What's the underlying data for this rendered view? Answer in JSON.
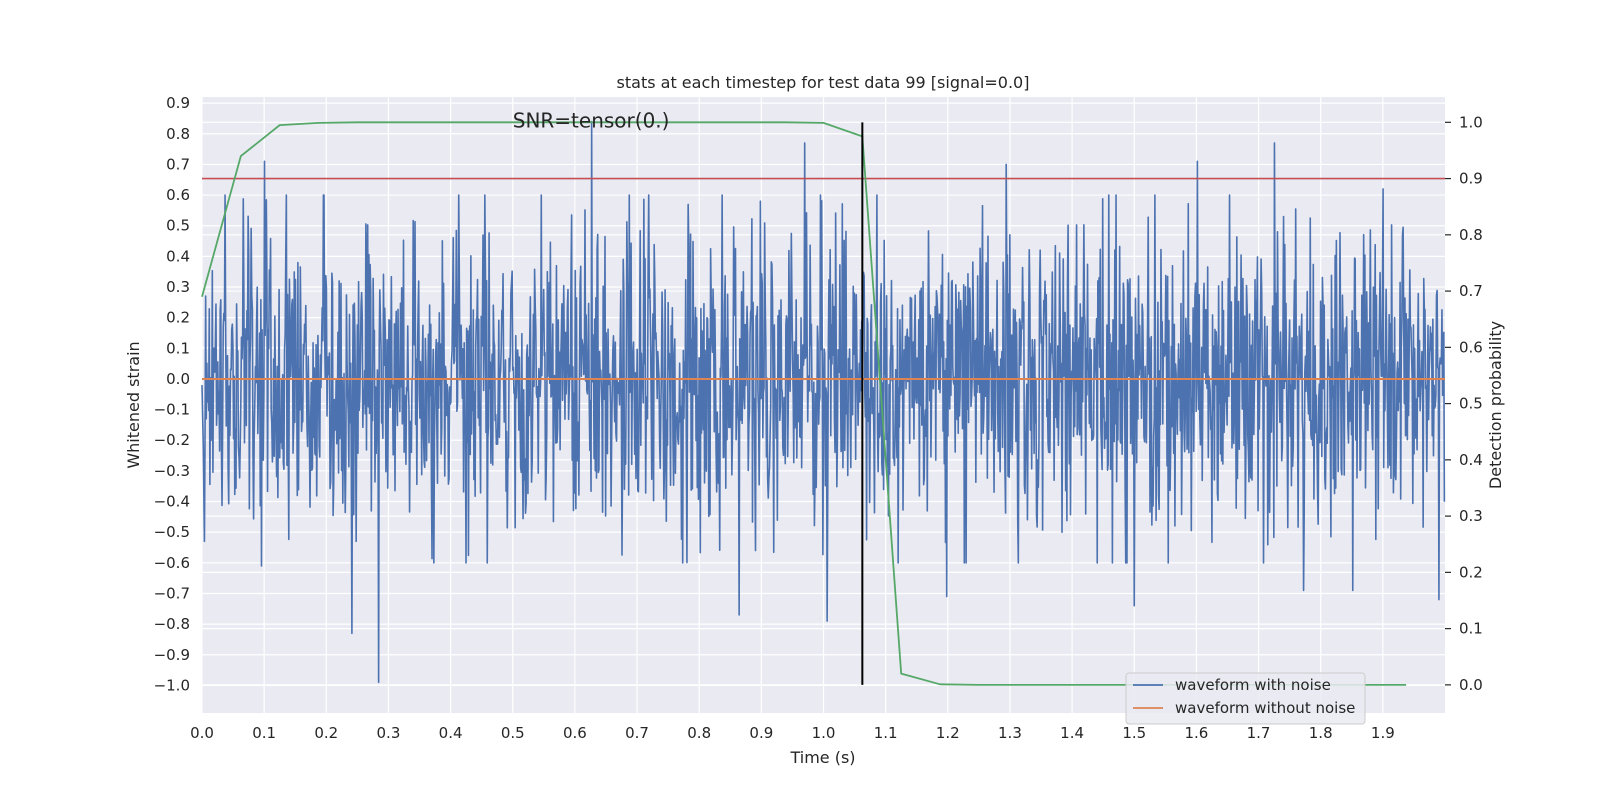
{
  "chart_data": {
    "type": "line",
    "title": "stats at each timestep for test data 99 [signal=0.0]",
    "xlabel": "Time (s)",
    "ylabel": "Whitened strain",
    "ylabel_right": "Detection probability",
    "xlim": [
      0.0,
      2.0
    ],
    "ylim": [
      -1.09,
      0.92
    ],
    "ylim_right": [
      -0.05,
      1.045
    ],
    "x_ticks": [
      0.0,
      0.1,
      0.2,
      0.3,
      0.4,
      0.5,
      0.6,
      0.7,
      0.8,
      0.9,
      1.0,
      1.1,
      1.2,
      1.3,
      1.4,
      1.5,
      1.6,
      1.7,
      1.8,
      1.9
    ],
    "x_tick_labels": [
      "0.0",
      "0.1",
      "0.2",
      "0.3",
      "0.4",
      "0.5",
      "0.6",
      "0.7",
      "0.8",
      "0.9",
      "1.0",
      "1.1",
      "1.2",
      "1.3",
      "1.4",
      "1.5",
      "1.6",
      "1.7",
      "1.8",
      "1.9"
    ],
    "y_ticks": [
      0.9,
      0.8,
      0.7,
      0.6,
      0.5,
      0.4,
      0.3,
      0.2,
      0.1,
      0.0,
      -0.1,
      -0.2,
      -0.3,
      -0.4,
      -0.5,
      -0.6,
      -0.7,
      -0.8,
      -0.9,
      -1.0
    ],
    "y_tick_labels": [
      "0.9",
      "0.8",
      "0.7",
      "0.6",
      "0.5",
      "0.4",
      "0.3",
      "0.2",
      "0.1",
      "0.0",
      "−0.1",
      "−0.2",
      "−0.3",
      "−0.4",
      "−0.5",
      "−0.6",
      "−0.7",
      "−0.8",
      "−0.9",
      "−1.0"
    ],
    "y_right_ticks": [
      1.0,
      0.9,
      0.8,
      0.7,
      0.6,
      0.5,
      0.4,
      0.3,
      0.2,
      0.1,
      0.0
    ],
    "y_right_tick_labels": [
      "1.0",
      "0.9",
      "0.8",
      "0.7",
      "0.6",
      "0.5",
      "0.4",
      "0.3",
      "0.2",
      "0.1",
      "0.0"
    ],
    "annotation": "SNR=tensor(0.)",
    "annotation_x": 0.5,
    "annotation_y": 0.82,
    "noise_series": {
      "name": "waveform with noise",
      "color": "#4c72b0",
      "x_start": 0.0,
      "x_end": 2.0,
      "samples": 2048,
      "seed": 99,
      "std": 0.24,
      "extremes": [
        {
          "x": 0.627,
          "y": 0.84
        },
        {
          "x": 0.97,
          "y": 0.77
        },
        {
          "x": 0.101,
          "y": 0.71
        },
        {
          "x": 1.602,
          "y": 0.71
        },
        {
          "x": 1.726,
          "y": 0.77
        },
        {
          "x": 1.294,
          "y": 0.7
        },
        {
          "x": 0.284,
          "y": -0.99
        },
        {
          "x": 0.241,
          "y": -0.83
        },
        {
          "x": 1.006,
          "y": -0.79
        },
        {
          "x": 0.864,
          "y": -0.77
        },
        {
          "x": 1.5,
          "y": -0.74
        },
        {
          "x": 1.198,
          "y": -0.71
        },
        {
          "x": 1.772,
          "y": -0.69
        },
        {
          "x": 1.852,
          "y": -0.69
        },
        {
          "x": 0.096,
          "y": -0.61
        },
        {
          "x": 0.004,
          "y": -0.53
        },
        {
          "x": 1.99,
          "y": -0.72
        },
        {
          "x": 1.06,
          "y": 0.16
        },
        {
          "x": 1.9,
          "y": 0.62
        }
      ]
    },
    "clean_series": {
      "name": "waveform without noise",
      "color": "#dd8452",
      "x": [
        0.0,
        2.0
      ],
      "y": [
        0.0,
        0.0
      ]
    },
    "probability_series": {
      "name": "detection probability",
      "color": "#55a868",
      "axis": "right",
      "x": [
        0.0,
        0.0625,
        0.125,
        0.1875,
        0.25,
        0.3125,
        0.375,
        0.4375,
        0.5,
        0.5625,
        0.625,
        0.6875,
        0.75,
        0.8125,
        0.875,
        0.9375,
        1.0,
        1.0625,
        1.125,
        1.1875,
        1.25,
        1.3125,
        1.375,
        1.4375,
        1.5,
        1.5625,
        1.625,
        1.6875,
        1.75,
        1.8125,
        1.875,
        1.9375
      ],
      "y": [
        0.69,
        0.94,
        0.995,
        0.999,
        1.0,
        1.0,
        1.0,
        1.0,
        1.0,
        1.0,
        1.0,
        1.0,
        1.0,
        1.0,
        1.0,
        1.0,
        0.999,
        0.975,
        0.02,
        0.001,
        0.0,
        0.0,
        0.0,
        0.0,
        0.0,
        0.0,
        0.0,
        0.0,
        0.0,
        0.0,
        0.0,
        0.0
      ]
    },
    "threshold_line": {
      "y_right": 0.9,
      "color": "#c44e52"
    },
    "marker_line": {
      "x": 1.0625,
      "y_right_from": 0.0,
      "y_right_to": 1.0,
      "color": "#000000"
    },
    "legend": {
      "placement": "lower-right",
      "entries": [
        {
          "label": "waveform with noise",
          "color": "#4c72b0"
        },
        {
          "label": "waveform without noise",
          "color": "#dd8452"
        }
      ]
    },
    "grid": true
  }
}
